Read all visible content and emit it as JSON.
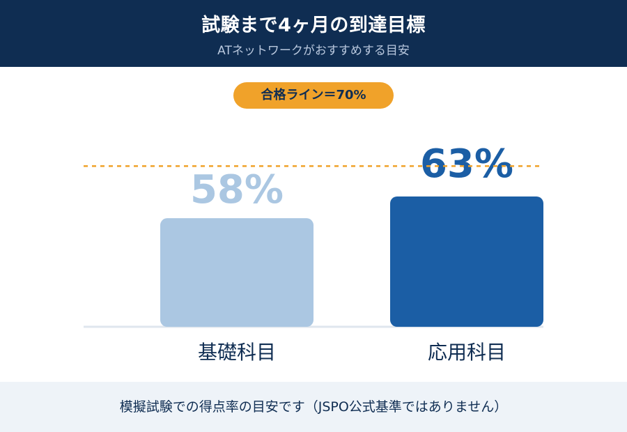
{
  "header": {
    "title": "試験まで4ヶ月の到達目標",
    "subtitle": "ATネットワークがおすすめする目安"
  },
  "badge": {
    "label": "合格ライン＝70%"
  },
  "footer": {
    "note": "模擬試験での得点率の目安です（JSPO公式基準ではありません）"
  },
  "colors": {
    "header_bg": "#0f2d52",
    "accent_orange": "#f0a22a",
    "bar_light": "#abc7e2",
    "bar_dark": "#1b5ea5",
    "footer_bg": "#eef3f8"
  },
  "chart_data": {
    "type": "bar",
    "categories": [
      "基礎科目",
      "応用科目"
    ],
    "values": [
      58,
      63
    ],
    "value_labels": [
      "58%",
      "63%"
    ],
    "threshold": 70,
    "threshold_label": "合格ライン＝70%",
    "title": "試験まで4ヶ月の到達目標",
    "subtitle": "ATネットワークがおすすめする目安",
    "xlabel": "",
    "ylabel": "",
    "grid": false,
    "legend": "none"
  }
}
